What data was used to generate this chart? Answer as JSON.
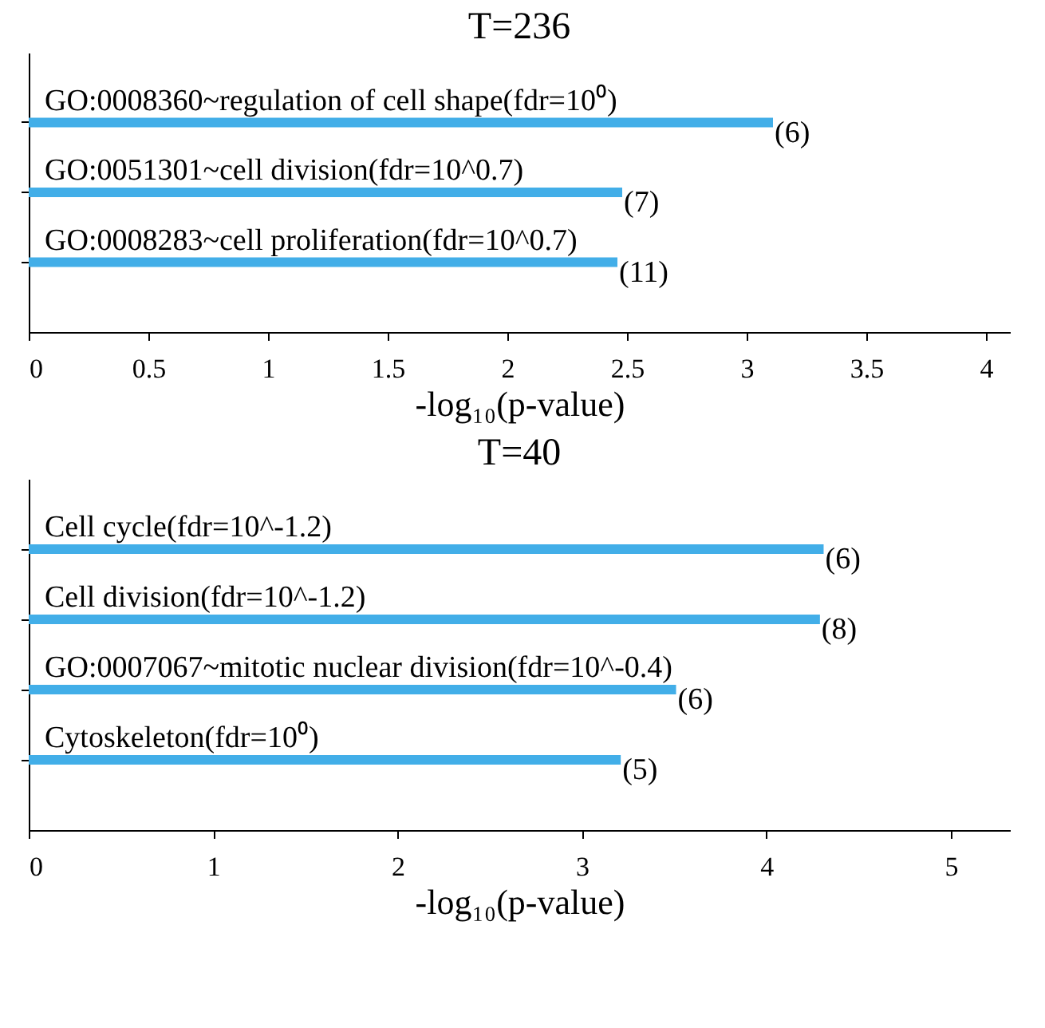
{
  "chart_data": [
    {
      "type": "bar",
      "orientation": "horizontal",
      "title": "T=236",
      "xlabel": "-log₁₀(p-value)",
      "categories": [
        "GO:0008360~regulation of cell shape(fdr=10⁰)",
        "GO:0051301~cell division(fdr=10^0.7)",
        "GO:0008283~cell proliferation(fdr=10^0.7)"
      ],
      "values": [
        3.11,
        2.48,
        2.46
      ],
      "color": "#42aee8",
      "annotations": [
        "(6)",
        "(7)",
        "(11)"
      ],
      "xlim": [
        0,
        4.1
      ],
      "xticks": [
        0,
        0.5,
        1,
        1.5,
        2,
        2.5,
        3,
        3.5,
        4
      ],
      "tick_labels": "x",
      "grid": false
    },
    {
      "type": "bar",
      "orientation": "horizontal",
      "title": "T=40",
      "xlabel": "-log₁₀(p-value)",
      "categories": [
        "Cell cycle(fdr=10^-1.2)",
        "Cell division(fdr=10^-1.2)",
        "GO:0007067~mitotic nuclear division(fdr=10^-0.4)",
        "Cytoskeleton(fdr=10⁰)"
      ],
      "values": [
        4.31,
        4.29,
        3.51,
        3.21
      ],
      "color": "#42aee8",
      "annotations": [
        "(6)",
        "(8)",
        "(6)",
        "(5)"
      ],
      "xlim": [
        0,
        5.32
      ],
      "xticks": [
        0,
        1,
        2,
        3,
        4,
        5
      ],
      "tick_labels": "x",
      "grid": false
    }
  ]
}
